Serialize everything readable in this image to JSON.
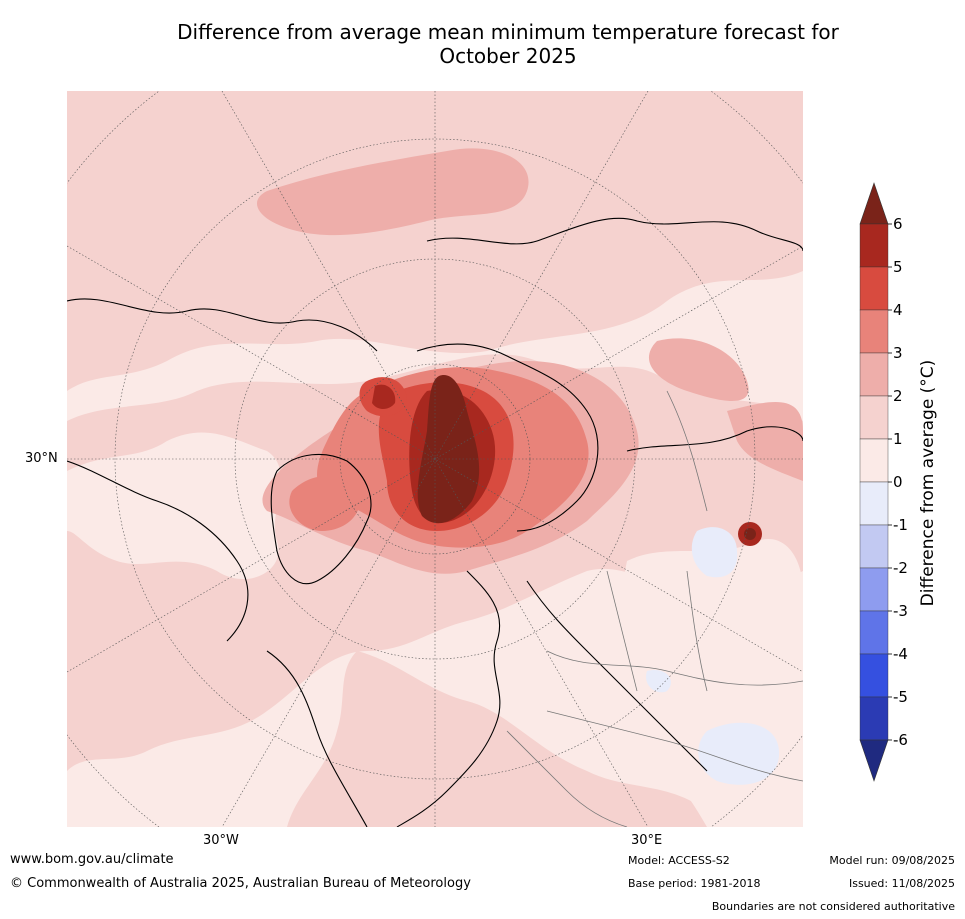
{
  "title_line1": "Difference from average mean minimum temperature forecast for",
  "title_line2": "October 2025",
  "labels": {
    "lat_30n": "30°N",
    "lon_30w": "30°W",
    "lon_30e": "30°E"
  },
  "colorbar": {
    "title": "Difference from average (°C)",
    "ticks": [
      "6",
      "5",
      "4",
      "3",
      "2",
      "1",
      "0",
      "-1",
      "-2",
      "-3",
      "-4",
      "-5",
      "-6"
    ],
    "colors": {
      "c6plus": "#7a2319",
      "c5_6": "#a8281f",
      "c4_5": "#d84b3f",
      "c3_4": "#e8837a",
      "c2_3": "#eeaeaa",
      "c1_2": "#f5d2cf",
      "c0_1": "#fbeae7",
      "cm1_0": "#e8ecfa",
      "cm2_m1": "#c2c9f2",
      "cm3_m2": "#8e9cef",
      "cm4_m3": "#5f74e8",
      "cm5_m4": "#3550e0",
      "cm6_m5": "#2b3bb4",
      "cm6minus": "#1f2a80"
    }
  },
  "footer": {
    "website": "www.bom.gov.au/climate",
    "copyright": "© Commonwealth of Australia 2025, Australian Bureau of Meteorology",
    "model": "Model: ACCESS-S2",
    "base_period": "Base period: 1981-2018",
    "model_run": "Model run: 09/08/2025",
    "issued": "Issued: 11/08/2025",
    "boundaries_note": "Boundaries are not considered authoritative"
  }
}
